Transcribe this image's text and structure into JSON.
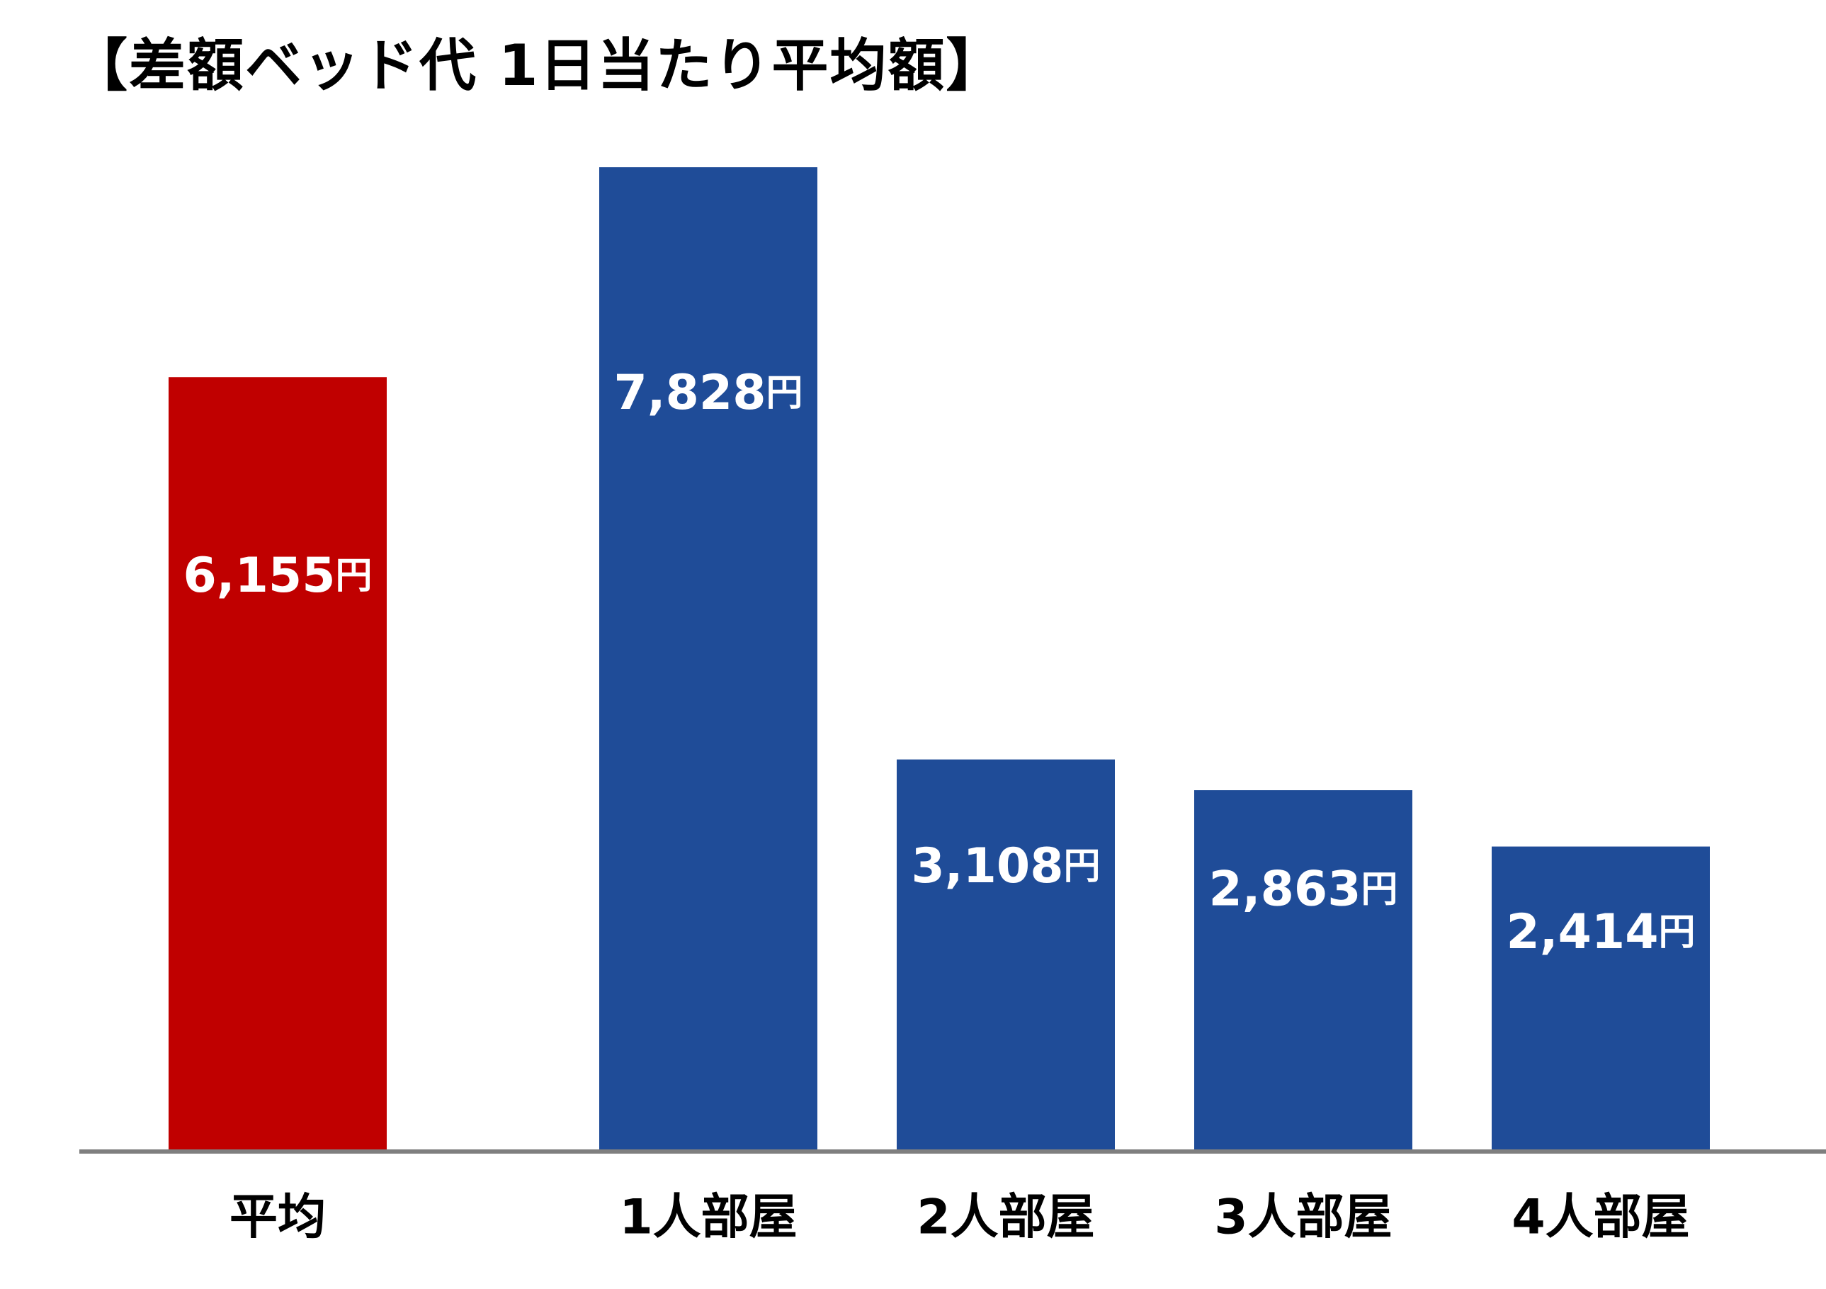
{
  "chart_data": {
    "type": "bar",
    "title": "【差額ベッド代 1日当たり平均額】",
    "categories": [
      "平均",
      "1人部屋",
      "2人部屋",
      "3人部屋",
      "4人部屋"
    ],
    "values": [
      6155,
      7828,
      3108,
      2863,
      2414
    ],
    "data_labels": [
      "6,155円",
      "7,828円",
      "3,108円",
      "2,863円",
      "2,414円"
    ],
    "bar_colors": [
      "#C00000",
      "#1F4C98",
      "#1F4C98",
      "#1F4C98",
      "#1F4C98"
    ],
    "ylim": [
      0,
      7828
    ],
    "grid": false,
    "legend": "none",
    "axis_color": "#7F7F7F"
  }
}
